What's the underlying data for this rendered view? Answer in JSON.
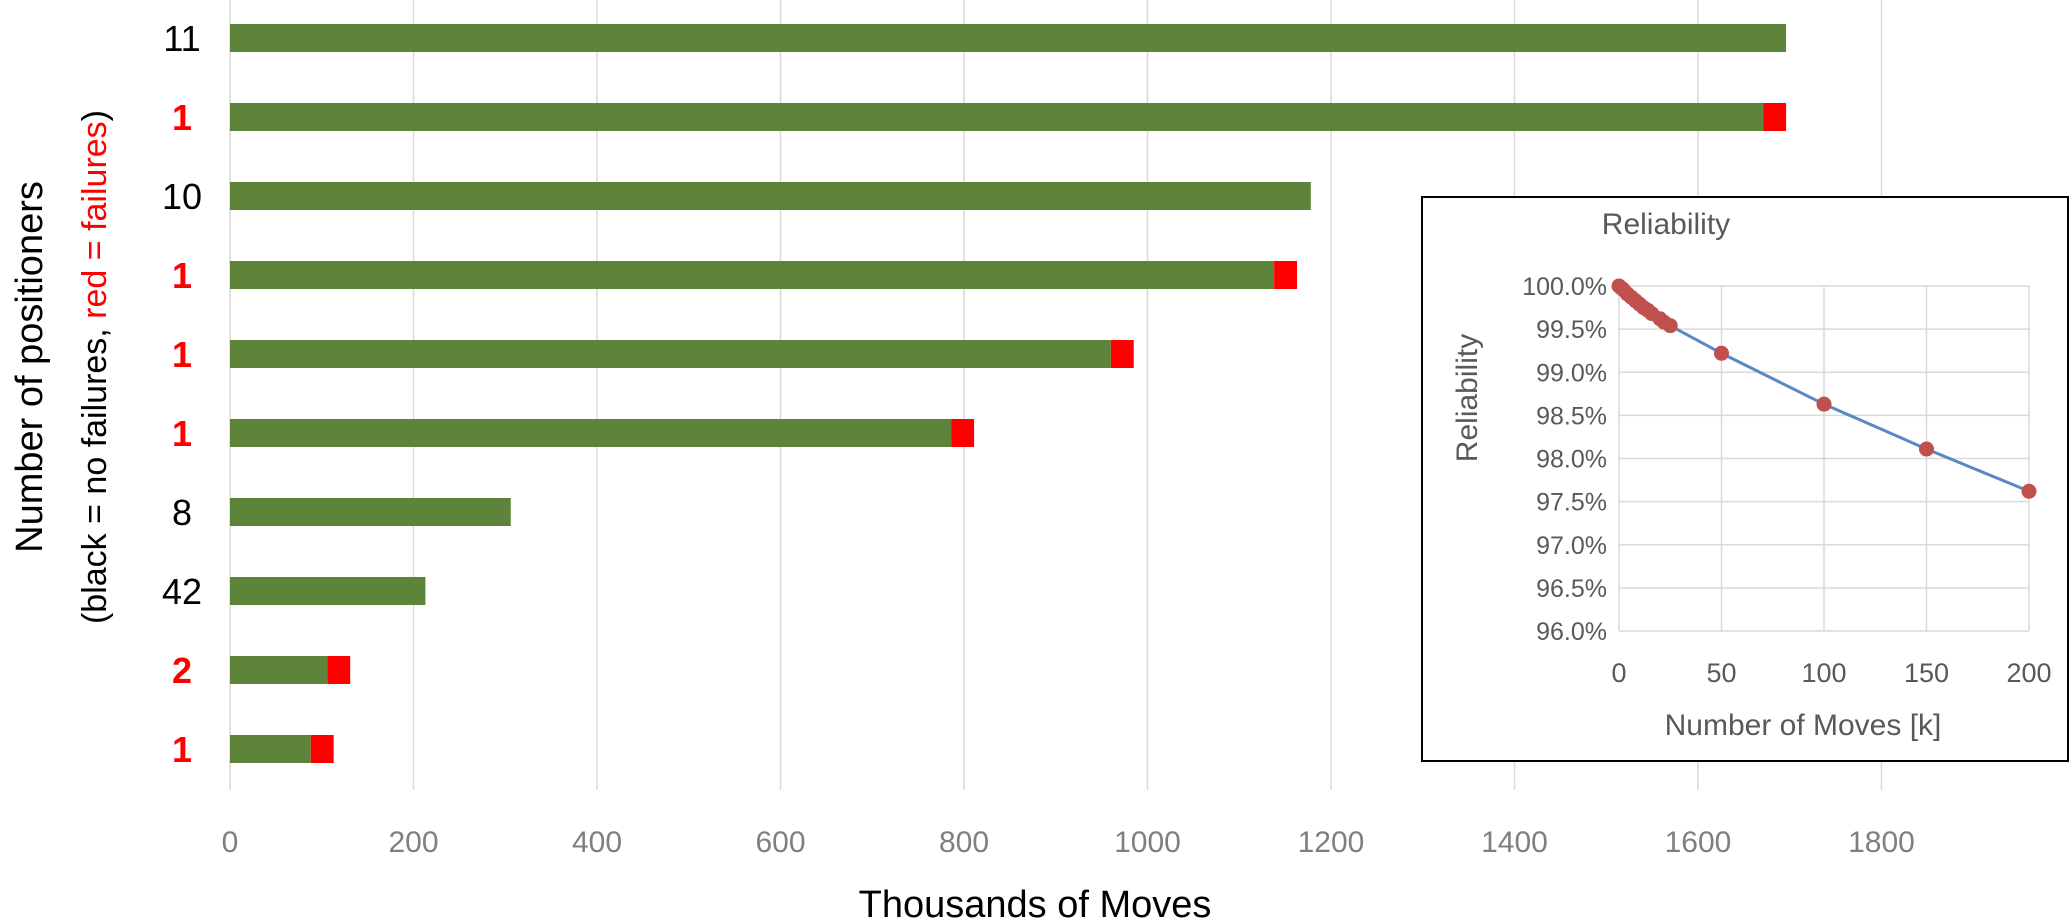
{
  "chart_data": [
    {
      "type": "bar",
      "stacked": true,
      "orientation": "horizontal",
      "categories": [
        "11",
        "1",
        "10",
        "1",
        "1",
        "1",
        "8",
        "42",
        "2",
        "1"
      ],
      "category_label_colors": [
        "#000000",
        "#ff0000",
        "#000000",
        "#ff0000",
        "#ff0000",
        "#ff0000",
        "#000000",
        "#000000",
        "#ff0000",
        "#ff0000"
      ],
      "series": [
        {
          "color": "#5e843b",
          "values": [
            1696,
            1671,
            1178,
            1138,
            960,
            786,
            306,
            213,
            106,
            88
          ]
        },
        {
          "color": "#ff0000",
          "values": [
            0,
            25,
            0,
            25,
            25,
            25,
            0,
            0,
            25,
            25
          ]
        }
      ],
      "xlabel": "Thousands of Moves",
      "ylabel": "Number of positioners",
      "ylabel2_parts": [
        {
          "text": "(black = no failures, ",
          "color": "#000000"
        },
        {
          "text": "red = failures",
          "color": "#ff0000"
        },
        {
          "text": ")",
          "color": "#000000"
        }
      ],
      "xlim": [
        0,
        1950
      ],
      "xticks": [
        "0",
        "200",
        "400",
        "600",
        "800",
        "1000",
        "1200",
        "1400",
        "1600",
        "1800"
      ],
      "grid": true
    },
    {
      "type": "line",
      "title": "Reliability",
      "xlabel": "Number of Moves [k]",
      "ylabel": "Reliability",
      "xlim": [
        0,
        200
      ],
      "ylim": [
        96.0,
        100.0
      ],
      "xticks": [
        "0",
        "50",
        "100",
        "150",
        "200"
      ],
      "yticks": [
        "96.0%",
        "96.5%",
        "97.0%",
        "97.5%",
        "98.0%",
        "98.5%",
        "99.0%",
        "99.5%",
        "100.0%"
      ],
      "grid": true,
      "line_color": "#5a87c6",
      "marker_color": "#c0504d",
      "x": [
        0,
        1,
        2,
        4,
        6,
        8,
        10,
        12,
        14,
        16,
        20,
        22,
        25,
        50,
        100,
        150,
        200
      ],
      "y": [
        100.0,
        99.98,
        99.96,
        99.91,
        99.87,
        99.83,
        99.79,
        99.75,
        99.72,
        99.68,
        99.62,
        99.58,
        99.54,
        99.22,
        98.63,
        98.11,
        97.62
      ]
    }
  ]
}
